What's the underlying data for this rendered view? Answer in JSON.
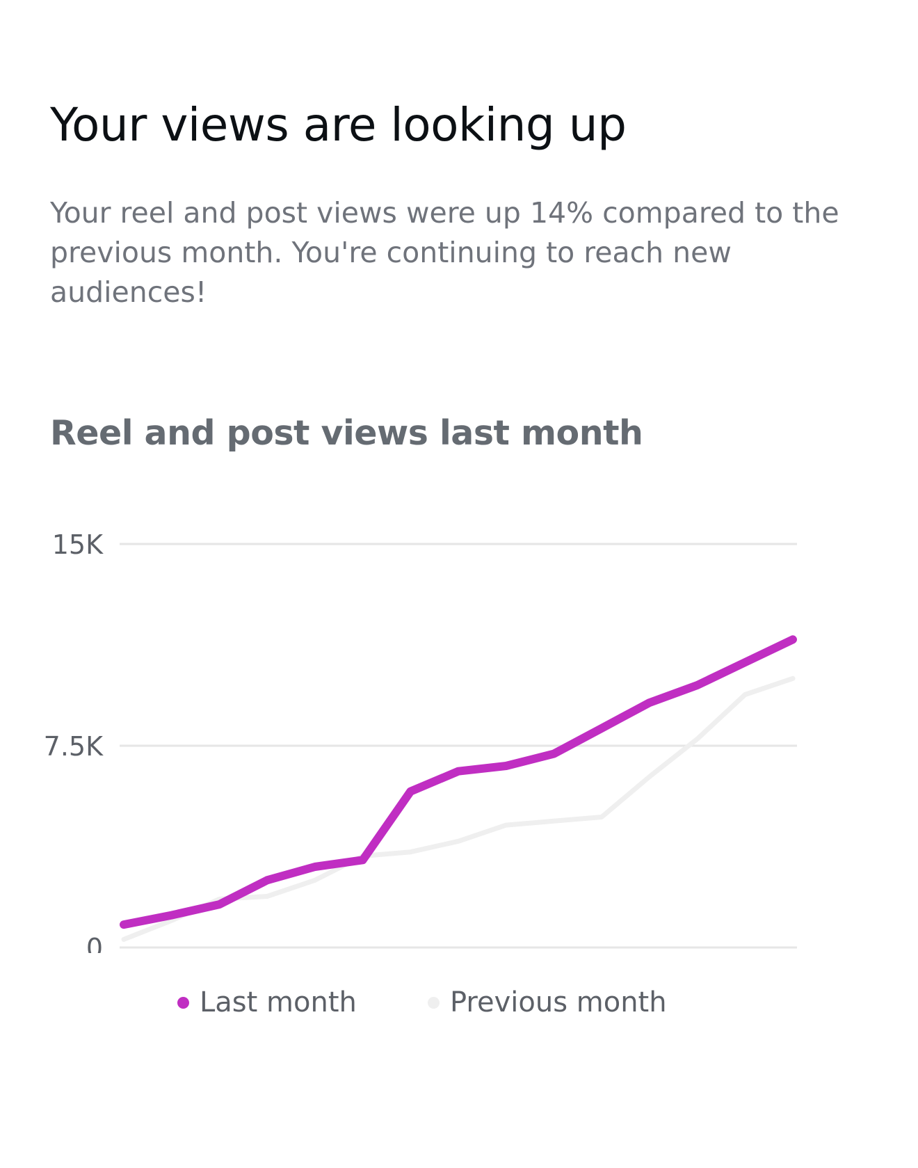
{
  "header": {
    "title": "Your views are looking up",
    "description": "Your reel and post views were up 14% compared to the previous month. You're continuing to reach new audiences!"
  },
  "colors": {
    "last_month": "#c02ec2",
    "previous_month": "#efefef",
    "gridline": "#e6e6e6",
    "axis_label": "#5c6067"
  },
  "chart_data": {
    "type": "line",
    "title": "Reel and post views last month",
    "xlabel": "",
    "ylabel": "",
    "ylim": [
      0,
      15000
    ],
    "yticks": [
      {
        "value": 0,
        "label": "0"
      },
      {
        "value": 7500,
        "label": "7.5K"
      },
      {
        "value": 15000,
        "label": "15K"
      }
    ],
    "grid": true,
    "legend_position": "bottom",
    "x": [
      1,
      2,
      3,
      4,
      5,
      6,
      7,
      8,
      9,
      10,
      11,
      12,
      13,
      14,
      15
    ],
    "series": [
      {
        "name": "Last month",
        "color_key": "last_month",
        "values": [
          850,
          1200,
          1600,
          2500,
          3000,
          3250,
          5800,
          6550,
          6750,
          7200,
          8150,
          9100,
          9750,
          10600,
          11450
        ]
      },
      {
        "name": "Previous month",
        "color_key": "previous_month",
        "values": [
          300,
          1000,
          1800,
          1900,
          2500,
          3400,
          3550,
          3950,
          4550,
          4700,
          4850,
          6350,
          7750,
          9400,
          10000
        ]
      }
    ]
  }
}
